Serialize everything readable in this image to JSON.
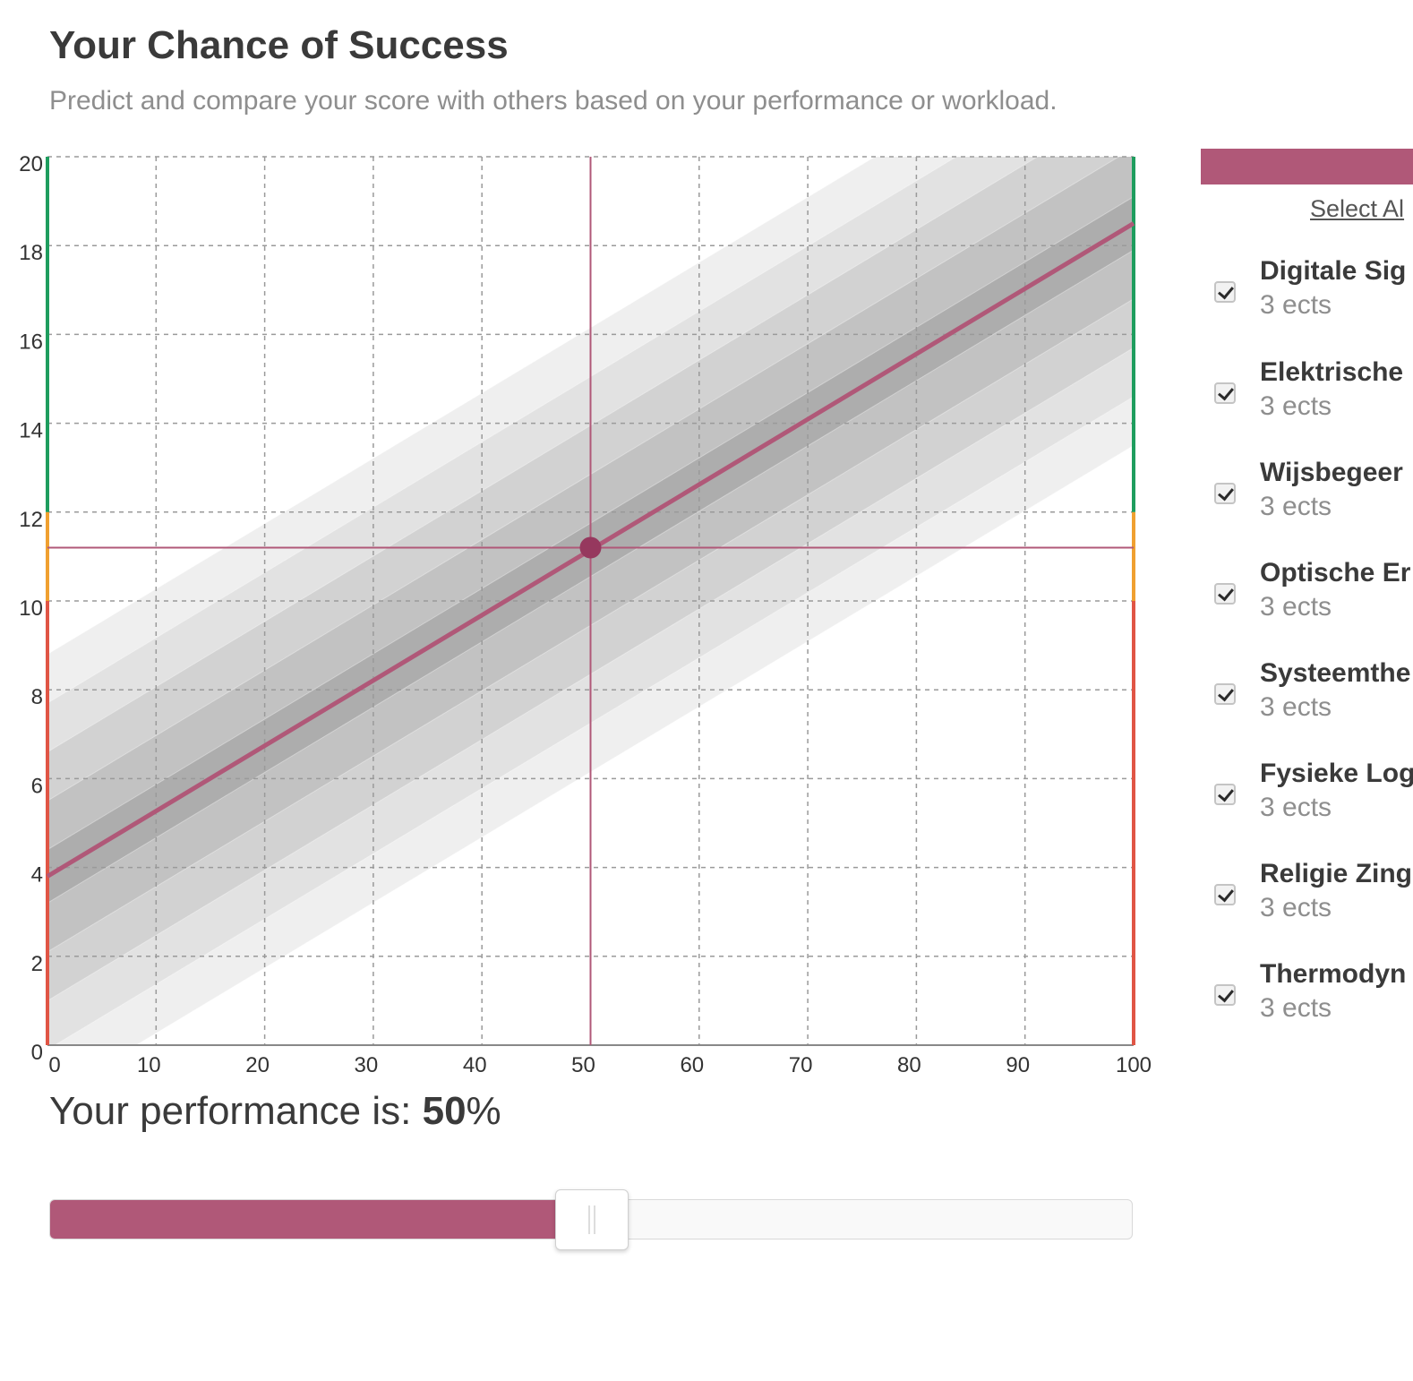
{
  "header": {
    "title": "Your Chance of Success",
    "subtitle": "Predict and compare your score with others based on your performance or workload."
  },
  "performance": {
    "prefix": "Your performance is: ",
    "value": "50",
    "suffix": "%"
  },
  "slider": {
    "percent": 50,
    "fill_color": "#b05878"
  },
  "sidebar": {
    "select_all_label": "Select Al",
    "bar_color": "#b05878",
    "courses": [
      {
        "name": "Digitale Sig",
        "ects": "3 ects",
        "checked": true
      },
      {
        "name": "Elektrische",
        "ects": "3 ects",
        "checked": true
      },
      {
        "name": "Wijsbegeer",
        "ects": "3 ects",
        "checked": true
      },
      {
        "name": "Optische Er",
        "ects": "3 ects",
        "checked": true
      },
      {
        "name": "Systeemthe",
        "ects": "3 ects",
        "checked": true
      },
      {
        "name": "Fysieke Log",
        "ects": "3 ects",
        "checked": true
      },
      {
        "name": "Religie Zing",
        "ects": "3 ects",
        "checked": true
      },
      {
        "name": "Thermodyn",
        "ects": "3 ects",
        "checked": true
      }
    ]
  },
  "chart_data": {
    "type": "line",
    "title": "",
    "xlabel": "",
    "ylabel": "",
    "xlim": [
      0,
      100
    ],
    "ylim": [
      0,
      20
    ],
    "x_ticks": [
      "0",
      "10",
      "20",
      "30",
      "40",
      "50",
      "60",
      "70",
      "80",
      "90",
      "100"
    ],
    "y_ticks": [
      "0",
      "2",
      "4",
      "6",
      "8",
      "10",
      "12",
      "14",
      "16",
      "18",
      "20"
    ],
    "grid": true,
    "prediction_line": {
      "x": [
        0,
        100
      ],
      "y": [
        3.8,
        18.5
      ]
    },
    "bands": [
      {
        "offset": 5.0,
        "color": "#efefef"
      },
      {
        "offset": 3.9,
        "color": "#e2e2e2"
      },
      {
        "offset": 2.8,
        "color": "#d2d2d2"
      },
      {
        "offset": 1.7,
        "color": "#c2c2c2"
      },
      {
        "offset": 0.6,
        "color": "#adadad"
      }
    ],
    "marker": {
      "x": 50,
      "y": 11.2
    },
    "threshold_colors": {
      "fail": "#e05545",
      "borderline": "#f0a030",
      "pass": "#1e9d5e"
    },
    "thresholds": {
      "fail_below": 10,
      "pass_from": 12
    },
    "accent": "#b05878",
    "marker_color": "#96385e"
  }
}
